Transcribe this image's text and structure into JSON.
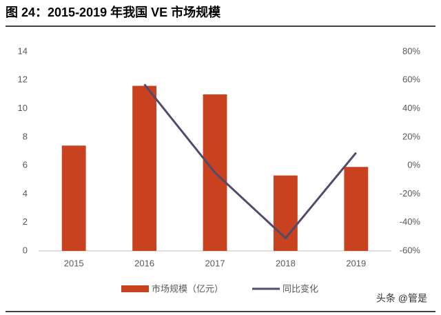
{
  "chart_data": {
    "type": "bar_line",
    "title": "图 24：2015-2019 年我国 VE 市场规模",
    "categories": [
      "2015",
      "2016",
      "2017",
      "2018",
      "2019"
    ],
    "series": [
      {
        "name": "市场规模（亿元）",
        "color": "#c8421f",
        "type": "bar",
        "values": [
          7.4,
          11.6,
          11.0,
          5.3,
          5.9
        ]
      },
      {
        "name": "同比变化",
        "color": "#514a6d",
        "type": "line",
        "axis": "y2",
        "values": [
          null,
          57,
          -5,
          -51,
          9
        ]
      }
    ],
    "ylim": [
      0,
      14
    ],
    "yticks": [
      0,
      2,
      4,
      6,
      8,
      10,
      12,
      14
    ],
    "y2lim": [
      -60,
      80
    ],
    "y2ticks": [
      {
        "value": -60,
        "label": "-60%"
      },
      {
        "value": -40,
        "label": "-40%"
      },
      {
        "value": -20,
        "label": "-20%"
      },
      {
        "value": 0,
        "label": "0%"
      },
      {
        "value": 20,
        "label": "20%"
      },
      {
        "value": 40,
        "label": "40%"
      },
      {
        "value": 60,
        "label": "60%"
      },
      {
        "value": 80,
        "label": "80%"
      }
    ],
    "legend": "bottom",
    "watermark": "头条 @管是"
  }
}
